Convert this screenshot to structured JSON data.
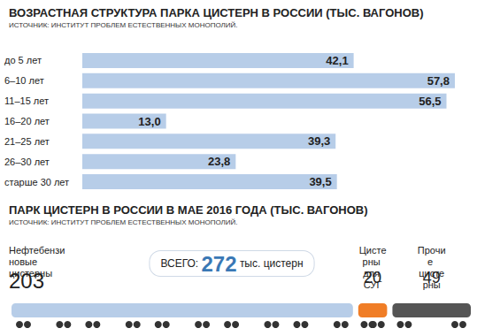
{
  "chart_data": [
    {
      "type": "bar",
      "orientation": "horizontal",
      "title": "ВОЗРАСТНАЯ СТРУКТУРА ПАРКА ЦИСТЕРН В РОССИИ (ТЫС. ВАГОНОВ)",
      "subtitle": "ИСТОЧНИК: ИНСТИТУТ ПРОБЛЕМ ЕСТЕСТВЕННЫХ МОНОПОЛИЙ.",
      "categories": [
        "до 5 лет",
        "6–10 лет",
        "11–15 лет",
        "16–20 лет",
        "21–25 лет",
        "26–30 лет",
        "старше 30 лет"
      ],
      "values": [
        42.1,
        57.8,
        56.5,
        13.0,
        39.3,
        23.8,
        39.5
      ],
      "value_labels": [
        "42,1",
        "57,8",
        "56,5",
        "13,0",
        "39,3",
        "23,8",
        "39,5"
      ],
      "color": "#b7cde8",
      "xlim": [
        0,
        60
      ],
      "tick_labels": "y",
      "grid": false,
      "data_labels": true
    },
    {
      "type": "pictorial",
      "orientation": "horizontal",
      "stacked": true,
      "title": "ПАРК ЦИСТЕРН В РОССИИ В МАЕ 2016 ГОДА (ТЫС. ВАГОНОВ)",
      "subtitle": "ИСТОЧНИК: ИНСТИТУТ ПРОБЛЕМ ЕСТЕСТВЕННЫХ МОНОПОЛИЙ.",
      "categories": [
        "Нефтебензиновые цистерны",
        "Цистерны для СУГ",
        "Прочие цистерны"
      ],
      "values": [
        203,
        20,
        49
      ],
      "colors": [
        "#b7cde8",
        "#f07d26",
        "#555555"
      ],
      "data_labels": true,
      "total": {
        "prefix": "ВСЕГО:",
        "value": 272,
        "suffix": "тыс. цистерн"
      }
    }
  ]
}
